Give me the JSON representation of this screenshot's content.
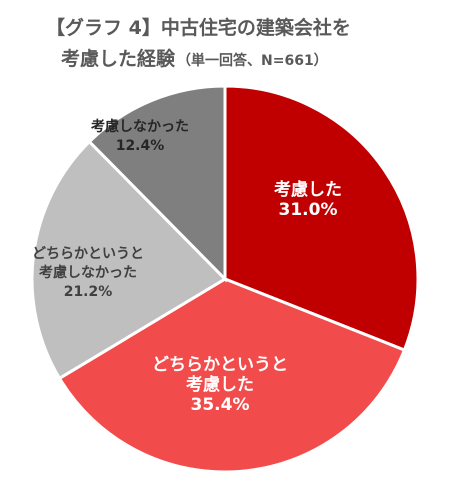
{
  "title": {
    "line1": "【グラフ 4】中古住宅の建築会社を",
    "line2": "考慮した経験",
    "subtitle": "（単一回答、N=661）"
  },
  "chart_data": {
    "type": "pie",
    "categories": [
      "考慮した",
      "どちらかというと考慮した",
      "どちらかというと考慮しなかった",
      "考慮しなかった"
    ],
    "values": [
      31.0,
      35.4,
      21.2,
      12.4
    ],
    "label_lines": [
      [
        "考慮した",
        "31.0%"
      ],
      [
        "どちらかというと",
        "考慮した",
        "35.4%"
      ],
      [
        "どちらかというと",
        "考慮しなかった",
        "21.2%"
      ],
      [
        "考慮しなかった",
        "12.4%"
      ]
    ],
    "colors": [
      "#C00000",
      "#F24B4B",
      "#BFBFBF",
      "#7F7F7F"
    ],
    "label_colors": [
      "#ffffff",
      "#ffffff",
      "#404040",
      "#262626"
    ],
    "start_angle_deg": 0,
    "direction": "clockwise"
  }
}
